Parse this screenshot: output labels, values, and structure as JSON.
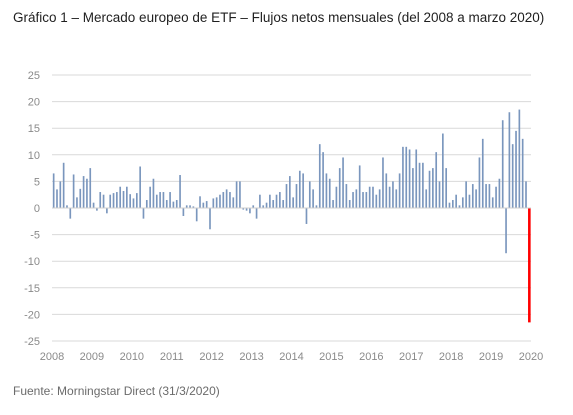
{
  "title": "Gráfico 1 – Mercado europeo de ETF – Flujos netos mensuales (del 2008 a marzo 2020)",
  "source": "Fuente: Morningstar Direct (31/3/2020)",
  "colors": {
    "bar": "#7a96bd",
    "highlight": "#ff0000",
    "grid": "#d9d9d9",
    "axis": "#cfcfcf",
    "tick_text": "#8a8a8a"
  },
  "chart_data": {
    "type": "bar",
    "title": "Gráfico 1 – Mercado europeo de ETF – Flujos netos mensuales (del 2008 a marzo 2020)",
    "xlabel": "",
    "ylabel": "",
    "ylim": [
      -25,
      25
    ],
    "yticks": [
      25,
      20,
      15,
      10,
      5,
      0,
      -5,
      -10,
      -15,
      -20,
      -25
    ],
    "xticks": [
      "2008",
      "2009",
      "2010",
      "2011",
      "2012",
      "2013",
      "2014",
      "2015",
      "2016",
      "2017",
      "2018",
      "2019",
      "2020"
    ],
    "grid": true,
    "legend": "none",
    "start": "2008-01",
    "frequency": "monthly",
    "highlight": {
      "month": "2020-03",
      "color": "#ff0000"
    },
    "values": [
      6.5,
      3.5,
      5.0,
      8.5,
      0.5,
      -2.0,
      6.3,
      2.0,
      3.6,
      6.0,
      5.5,
      7.5,
      1.0,
      -0.5,
      3.0,
      2.5,
      -1.0,
      2.5,
      2.8,
      3.0,
      4.0,
      3.2,
      4.0,
      2.6,
      1.8,
      2.8,
      7.8,
      -2.0,
      1.5,
      4.0,
      5.5,
      2.5,
      3.0,
      3.0,
      1.5,
      3.0,
      1.2,
      1.5,
      6.2,
      -1.5,
      0.5,
      0.5,
      0.3,
      -2.5,
      2.2,
      1.0,
      1.3,
      -4.0,
      1.8,
      2.0,
      2.5,
      3.0,
      3.5,
      3.0,
      2.0,
      5.0,
      5.0,
      -0.3,
      -0.5,
      -1.0,
      0.5,
      -2.0,
      2.5,
      0.5,
      1.0,
      2.5,
      1.5,
      2.5,
      3.0,
      1.5,
      4.5,
      6.0,
      2.0,
      4.5,
      7.0,
      6.5,
      -3.0,
      5.0,
      3.5,
      0.5,
      12.0,
      10.5,
      6.5,
      5.5,
      1.5,
      4.0,
      7.5,
      9.5,
      4.5,
      1.5,
      3.0,
      3.5,
      8.0,
      3.0,
      3.0,
      4.0,
      4.0,
      2.5,
      3.5,
      9.5,
      6.5,
      4.0,
      5.0,
      3.5,
      6.5,
      11.5,
      11.5,
      11.0,
      7.5,
      11.0,
      8.5,
      8.5,
      3.5,
      7.0,
      7.5,
      10.5,
      5.0,
      14.0,
      7.5,
      1.0,
      1.5,
      2.5,
      0.5,
      2.0,
      5.0,
      2.5,
      4.5,
      3.5,
      9.5,
      13.0,
      4.5,
      4.5,
      2.0,
      4.0,
      5.5,
      16.5,
      -8.5,
      18.0,
      12.0,
      14.5,
      18.5,
      13.0,
      5.0,
      -21.5
    ]
  }
}
